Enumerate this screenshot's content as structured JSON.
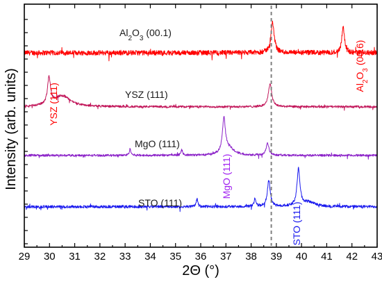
{
  "chart_data": {
    "type": "line",
    "xlabel": "2Θ (°)",
    "ylabel": "Intensity (arb. units)",
    "xlim": [
      29,
      43
    ],
    "x_ticks": [
      "29",
      "30",
      "31",
      "32",
      "33",
      "34",
      "35",
      "36",
      "37",
      "38",
      "39",
      "40",
      "41",
      "42",
      "43"
    ],
    "y_tick_labels_shown": false,
    "grid": false,
    "reference_line": {
      "x": 38.8,
      "style": "dashed",
      "color": "#808080"
    },
    "series": [
      {
        "name": "Al2O3 (00.1)",
        "label_parts": {
          "base": "Al",
          "sub1": "2",
          "mid": "O",
          "sub2": "3",
          "rest": " (00.1)"
        },
        "color": "#ff0000",
        "baseline": 0.0,
        "noise": 0.045,
        "peaks": [
          {
            "x": 38.85,
            "height": 0.55,
            "width": 0.08
          },
          {
            "x": 41.65,
            "height": 0.5,
            "width": 0.06
          }
        ]
      },
      {
        "name": "YSZ (111)",
        "color": "#c2185b",
        "baseline": -1.0,
        "noise": 0.02,
        "peaks": [
          {
            "x": 29.98,
            "height": 0.5,
            "width": 0.07
          },
          {
            "x": 30.5,
            "height": 0.2,
            "width": 0.4
          },
          {
            "x": 38.75,
            "height": 0.42,
            "width": 0.08
          }
        ]
      },
      {
        "name": "MgO (111)",
        "color": "#8b22c8",
        "baseline": -1.9,
        "noise": 0.02,
        "peaks": [
          {
            "x": 33.2,
            "height": 0.12,
            "width": 0.04
          },
          {
            "x": 35.25,
            "height": 0.1,
            "width": 0.04
          },
          {
            "x": 36.92,
            "height": 0.62,
            "width": 0.07
          },
          {
            "x": 37.1,
            "height": 0.14,
            "width": 0.25
          },
          {
            "x": 38.65,
            "height": 0.22,
            "width": 0.07
          }
        ]
      },
      {
        "name": "STO (111)",
        "color": "#1a1aee",
        "baseline": -2.85,
        "noise": 0.025,
        "peaks": [
          {
            "x": 35.85,
            "height": 0.14,
            "width": 0.04
          },
          {
            "x": 38.15,
            "height": 0.15,
            "width": 0.04
          },
          {
            "x": 38.7,
            "height": 0.48,
            "width": 0.07
          },
          {
            "x": 39.88,
            "height": 0.68,
            "width": 0.07
          },
          {
            "x": 40.3,
            "height": 0.08,
            "width": 0.3
          }
        ]
      }
    ],
    "peak_annotations": [
      {
        "text": "Al2O3 (00.6)",
        "parts": {
          "base": "Al",
          "sub1": "2",
          "mid": "O",
          "sub2": "3",
          "rest": " (00.6)"
        },
        "color": "#ff0000",
        "orientation": "vertical"
      },
      {
        "text": "YSZ (111)",
        "color": "#ff0000",
        "orientation": "vertical"
      },
      {
        "text": "MgO (111)",
        "color": "#a020f0",
        "orientation": "vertical"
      },
      {
        "text": "STO (111)",
        "color": "#1a1aee",
        "orientation": "vertical"
      }
    ]
  }
}
